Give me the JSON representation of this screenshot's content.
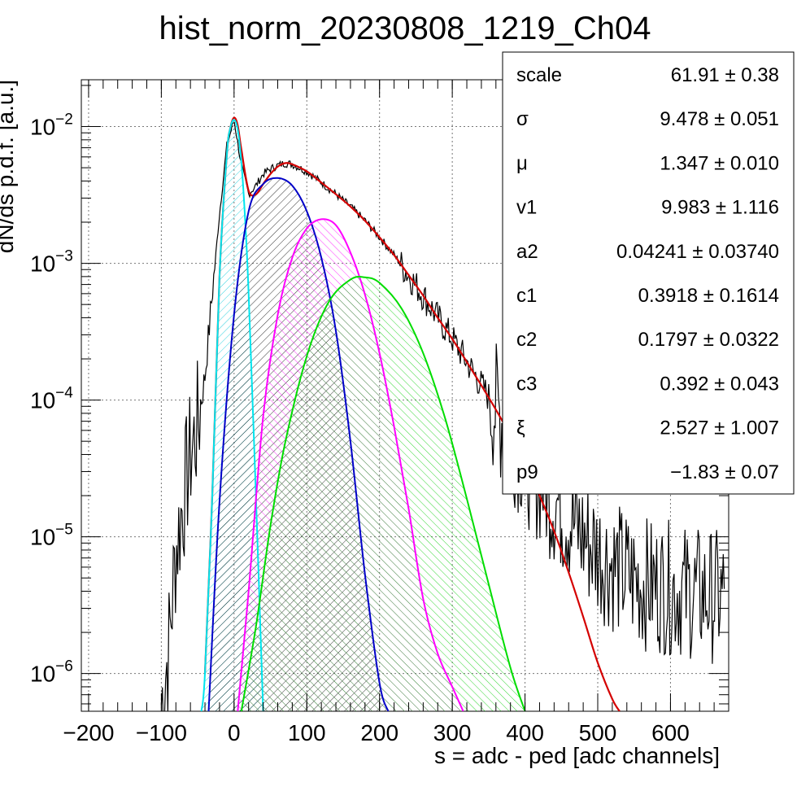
{
  "chart_data": {
    "type": "line",
    "title": "hist_norm_20230808_1219_Ch04",
    "xlabel": "s = adc - ped [adc channels]",
    "ylabel": "dN/ds p.d.f. [a.u.]",
    "x_scale": "linear",
    "y_scale": "log",
    "xlim": [
      -210,
      680
    ],
    "ylim": [
      5.3e-07,
      0.022
    ],
    "grid": true,
    "x_ticks": [
      {
        "v": -200,
        "label": "−200"
      },
      {
        "v": -100,
        "label": "−100"
      },
      {
        "v": 0,
        "label": "0"
      },
      {
        "v": 100,
        "label": "100"
      },
      {
        "v": 200,
        "label": "200"
      },
      {
        "v": 300,
        "label": "300"
      },
      {
        "v": 400,
        "label": "400"
      },
      {
        "v": 500,
        "label": "500"
      },
      {
        "v": 600,
        "label": "600"
      }
    ],
    "y_ticks": [
      {
        "v": 0.01,
        "base": "10",
        "exp": "−2"
      },
      {
        "v": 0.001,
        "base": "10",
        "exp": "−3"
      },
      {
        "v": 0.0001,
        "base": "10",
        "exp": "−4"
      },
      {
        "v": 1e-05,
        "base": "10",
        "exp": "−5"
      },
      {
        "v": 1e-06,
        "base": "10",
        "exp": "−6"
      }
    ],
    "series": [
      {
        "color": "#000000",
        "style": "histogram",
        "x": [
          -100,
          -90,
          -80,
          -70,
          -60,
          -50,
          -40,
          -30,
          -20,
          -10,
          0,
          10,
          20,
          30,
          40,
          50,
          60,
          70,
          80,
          100,
          120,
          140,
          160,
          180,
          200,
          220,
          240,
          260,
          280,
          300,
          320,
          340,
          360,
          380,
          400,
          420,
          440,
          460,
          480,
          500,
          520,
          540,
          560,
          580,
          600,
          620,
          640,
          660,
          675
        ],
        "y": [
          6e-07,
          1.5e-06,
          8e-06,
          1.8e-05,
          4e-05,
          6.5e-05,
          0.00015,
          0.0006,
          0.0023,
          0.0072,
          0.0112,
          0.0052,
          0.0032,
          0.0037,
          0.0045,
          0.0049,
          0.0052,
          0.0054,
          0.0053,
          0.0047,
          0.0039,
          0.0032,
          0.0026,
          0.00205,
          0.00155,
          0.00115,
          0.00082,
          0.00058,
          0.0004,
          0.00028,
          0.00019,
          0.000128,
          8.7e-05,
          5.8e-05,
          3.9e-05,
          2.7e-05,
          1.9e-05,
          1.4e-05,
          1e-05,
          7.8e-06,
          6.2e-06,
          5.2e-06,
          4.6e-06,
          4.4e-06,
          4.2e-06,
          4e-06,
          3.8e-06,
          3.7e-06,
          3.6e-06
        ]
      },
      {
        "color": "#d40000",
        "style": "line",
        "x": [
          -40,
          -30,
          -20,
          -10,
          -5,
          0,
          5,
          10,
          20,
          30,
          40,
          50,
          60,
          70,
          80,
          100,
          120,
          140,
          160,
          180,
          200,
          220,
          240,
          260,
          280,
          300,
          320,
          340,
          360,
          380,
          400,
          420,
          440,
          460,
          480,
          500,
          520,
          530
        ],
        "y": [
          1e-06,
          2e-05,
          0.0008,
          0.0062,
          0.0098,
          0.0116,
          0.0102,
          0.0068,
          0.0034,
          0.0032,
          0.0038,
          0.0045,
          0.0051,
          0.0054,
          0.0053,
          0.0047,
          0.0039,
          0.0032,
          0.0026,
          0.00205,
          0.00155,
          0.00115,
          0.00082,
          0.00058,
          0.0004,
          0.00028,
          0.00019,
          0.000128,
          8.5e-05,
          5.5e-05,
          3.4e-05,
          2e-05,
          1.1e-05,
          5.5e-06,
          2.6e-06,
          1.2e-06,
          6.5e-07,
          5.3e-07
        ]
      },
      {
        "color": "#00e5ee",
        "style": "filled",
        "x": [
          -45,
          -40,
          -30,
          -20,
          -10,
          -5,
          0,
          5,
          10,
          15,
          20,
          30,
          40
        ],
        "y": [
          5.3e-07,
          1e-06,
          2e-05,
          0.0008,
          0.0062,
          0.0098,
          0.0112,
          0.0095,
          0.0055,
          0.0022,
          0.0006,
          2e-05,
          5.3e-07
        ]
      },
      {
        "color": "#0000c8",
        "style": "filled",
        "x": [
          -35,
          -20,
          0,
          20,
          40,
          60,
          80,
          100,
          120,
          140,
          160,
          180,
          200,
          212
        ],
        "y": [
          5.3e-07,
          1.8e-05,
          0.00042,
          0.0024,
          0.0038,
          0.0042,
          0.0037,
          0.0024,
          0.0011,
          0.00032,
          5e-05,
          5.3e-06,
          8.5e-07,
          5.3e-07
        ]
      },
      {
        "color": "#ff00ff",
        "style": "filled",
        "x": [
          5,
          20,
          40,
          60,
          80,
          100,
          120,
          140,
          160,
          180,
          200,
          220,
          240,
          260,
          280,
          300,
          315
        ],
        "y": [
          5.3e-07,
          4e-06,
          7.6e-05,
          0.00042,
          0.0011,
          0.0018,
          0.0021,
          0.0019,
          0.0012,
          0.00059,
          0.00022,
          6.4e-05,
          1.6e-05,
          3.5e-06,
          1.4e-06,
          8e-07,
          5.3e-07
        ]
      },
      {
        "color": "#00dd00",
        "style": "filled",
        "x": [
          10,
          30,
          50,
          70,
          100,
          130,
          160,
          180,
          200,
          230,
          260,
          290,
          320,
          350,
          380,
          400
        ],
        "y": [
          5.3e-07,
          2.2e-06,
          1.2e-05,
          4.8e-05,
          0.00021,
          0.00052,
          0.00076,
          0.00079,
          0.00072,
          0.00047,
          0.00022,
          7.4e-05,
          1.9e-05,
          4.5e-06,
          1.1e-06,
          5.3e-07
        ]
      }
    ]
  },
  "stats": {
    "rows": [
      {
        "name": "scale",
        "value": "61.91",
        "pm": "±",
        "err": "0.38"
      },
      {
        "name": "σ",
        "value": "9.478",
        "pm": "±",
        "err": "0.051"
      },
      {
        "name": "μ",
        "value": "1.347",
        "pm": "±",
        "err": "0.010"
      },
      {
        "name": "v1",
        "value": "9.983",
        "pm": "±",
        "err": "1.116"
      },
      {
        "name": "a2",
        "value": "0.04241",
        "pm": "±",
        "err": "0.03740"
      },
      {
        "name": "c1",
        "value": "0.3918",
        "pm": "±",
        "err": "0.1614"
      },
      {
        "name": "c2",
        "value": "0.1797",
        "pm": "±",
        "err": "0.0322"
      },
      {
        "name": "c3",
        "value": "0.392",
        "pm": "±",
        "err": "0.043"
      },
      {
        "name": "ξ",
        "value": "2.527",
        "pm": "±",
        "err": "1.007"
      },
      {
        "name": "p9",
        "value": "−1.83",
        "pm": "±",
        "err": "0.07"
      }
    ]
  }
}
